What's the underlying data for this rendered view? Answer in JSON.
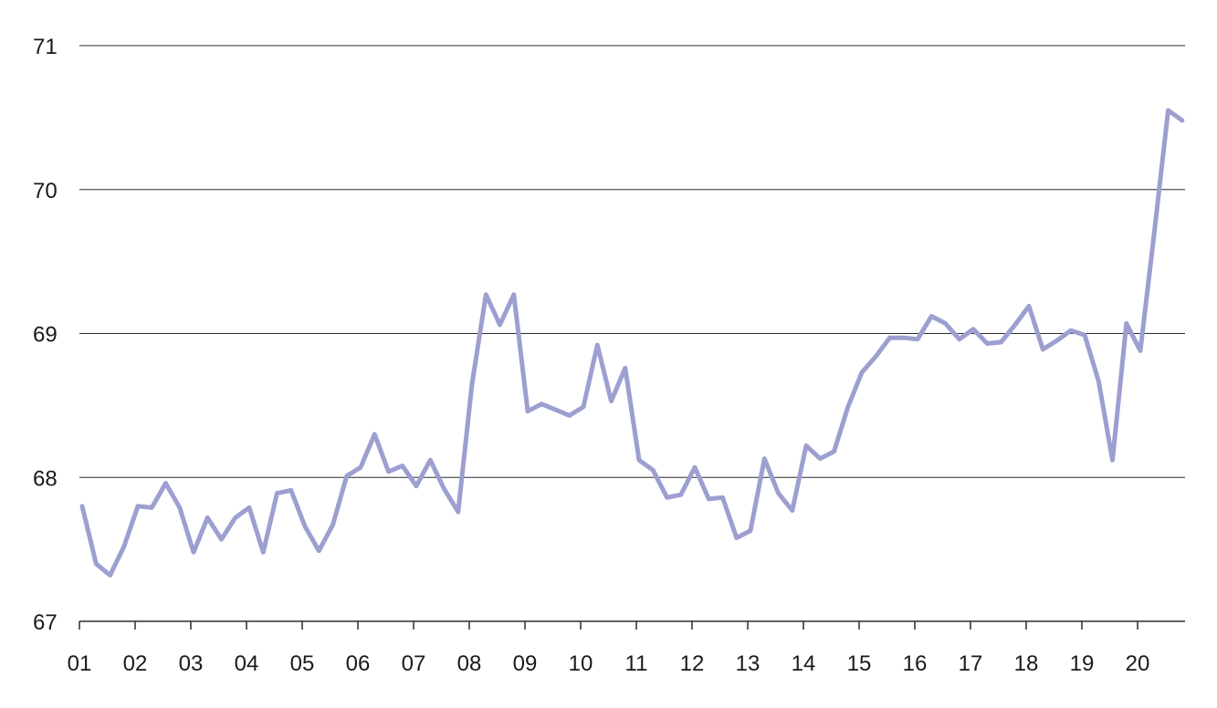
{
  "chart_data": {
    "type": "line",
    "title": "",
    "xlabel": "",
    "ylabel": "",
    "ylim": [
      67,
      71
    ],
    "yticks": [
      "67",
      "68",
      "69",
      "70",
      "71"
    ],
    "xticks": [
      "01",
      "02",
      "03",
      "04",
      "05",
      "06",
      "07",
      "08",
      "09",
      "10",
      "11",
      "12",
      "13",
      "14",
      "15",
      "16",
      "17",
      "18",
      "19",
      "20"
    ],
    "x_start": "2001 Q1",
    "grid": "horizontal",
    "legend": "none",
    "colors": {
      "line": "#9c9fd0",
      "grid": "#2b2b2b",
      "text": "#1a1a1a"
    },
    "series": [
      {
        "values": [
          67.8,
          67.4,
          67.32,
          67.52,
          67.8,
          67.79,
          67.96,
          67.79,
          67.48,
          67.72,
          67.57,
          67.72,
          67.79,
          67.48,
          67.89,
          67.91,
          67.66,
          67.49,
          67.67,
          68.01,
          68.07,
          68.3,
          68.04,
          68.08,
          67.94,
          68.12,
          67.92,
          67.76,
          68.65,
          69.27,
          69.06,
          69.27,
          68.46,
          68.51,
          68.47,
          68.43,
          68.49,
          68.92,
          68.53,
          68.76,
          68.12,
          68.05,
          67.86,
          67.88,
          68.07,
          67.85,
          67.86,
          67.58,
          67.63,
          68.13,
          67.89,
          67.77,
          68.22,
          68.13,
          68.18,
          68.49,
          68.73,
          68.84,
          68.97,
          68.97,
          68.96,
          69.12,
          69.07,
          68.96,
          69.03,
          68.93,
          68.94,
          69.06,
          69.19,
          68.89,
          68.95,
          69.02,
          68.99,
          68.67,
          68.12,
          69.07,
          68.88,
          69.7,
          70.55,
          70.48
        ]
      }
    ]
  }
}
